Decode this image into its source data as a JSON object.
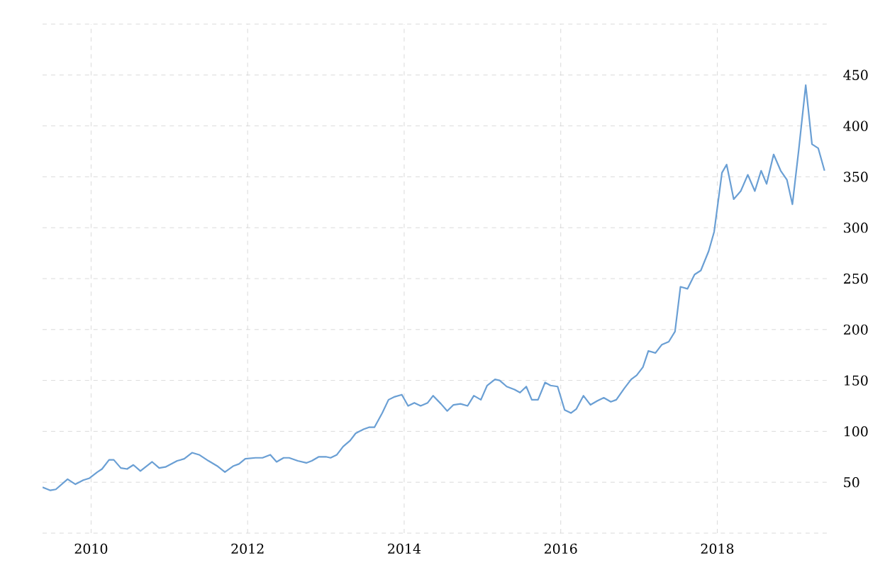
{
  "chart_data": {
    "type": "line",
    "color": "#6a9fd4",
    "grid": true,
    "marker": "none",
    "line_style": "solid",
    "xlim": [
      2009.38,
      2019.4
    ],
    "ylim": [
      0,
      500
    ],
    "xticks": [
      2010,
      2012,
      2014,
      2016,
      2018
    ],
    "yticks": [
      {
        "value": 0,
        "label": null
      },
      50,
      100,
      150,
      200,
      250,
      300,
      350,
      400,
      450,
      {
        "value": 500,
        "label": null
      }
    ],
    "x": [
      2009.38,
      2009.48,
      2009.55,
      2009.7,
      2009.8,
      2009.9,
      2009.98,
      2010.08,
      2010.14,
      2010.23,
      2010.29,
      2010.38,
      2010.46,
      2010.54,
      2010.63,
      2010.78,
      2010.87,
      2010.95,
      2011.1,
      2011.19,
      2011.29,
      2011.38,
      2011.5,
      2011.61,
      2011.71,
      2011.82,
      2011.89,
      2011.97,
      2012.1,
      2012.19,
      2012.29,
      2012.37,
      2012.46,
      2012.53,
      2012.64,
      2012.75,
      2012.82,
      2012.91,
      2013.0,
      2013.06,
      2013.14,
      2013.22,
      2013.31,
      2013.38,
      2013.48,
      2013.55,
      2013.62,
      2013.72,
      2013.8,
      2013.88,
      2013.97,
      2014.05,
      2014.13,
      2014.21,
      2014.3,
      2014.37,
      2014.47,
      2014.55,
      2014.63,
      2014.72,
      2014.81,
      2014.89,
      2014.98,
      2015.06,
      2015.16,
      2015.22,
      2015.31,
      2015.41,
      2015.48,
      2015.56,
      2015.63,
      2015.71,
      2015.8,
      2015.87,
      2015.96,
      2016.05,
      2016.13,
      2016.2,
      2016.29,
      2016.38,
      2016.47,
      2016.55,
      2016.64,
      2016.71,
      2016.81,
      2016.9,
      2016.97,
      2017.05,
      2017.12,
      2017.21,
      2017.29,
      2017.38,
      2017.46,
      2017.53,
      2017.62,
      2017.71,
      2017.79,
      2017.89,
      2017.96,
      2018.06,
      2018.12,
      2018.21,
      2018.3,
      2018.39,
      2018.48,
      2018.56,
      2018.63,
      2018.72,
      2018.81,
      2018.89,
      2018.96,
      2019.04,
      2019.13,
      2019.21,
      2019.29,
      2019.37
    ],
    "values": [
      45,
      42,
      43,
      53,
      48,
      52,
      54,
      60,
      63,
      72,
      72,
      64,
      63,
      67,
      61,
      70,
      64,
      65,
      71,
      73,
      79,
      77,
      71,
      66,
      60,
      66,
      68,
      73,
      74,
      74,
      77,
      70,
      74,
      74,
      71,
      69,
      71,
      75,
      75,
      74,
      77,
      85,
      91,
      98,
      102,
      104,
      104,
      118,
      131,
      134,
      136,
      125,
      128,
      125,
      128,
      135,
      127,
      120,
      126,
      127,
      125,
      135,
      131,
      145,
      151,
      150,
      144,
      141,
      138,
      144,
      131,
      131,
      148,
      145,
      144,
      121,
      118,
      122,
      135,
      126,
      130,
      133,
      129,
      131,
      142,
      151,
      155,
      163,
      179,
      177,
      185,
      188,
      198,
      242,
      240,
      254,
      258,
      277,
      296,
      354,
      362,
      328,
      336,
      352,
      336,
      356,
      343,
      372,
      356,
      347,
      323,
      376,
      440,
      382,
      378,
      356
    ]
  }
}
